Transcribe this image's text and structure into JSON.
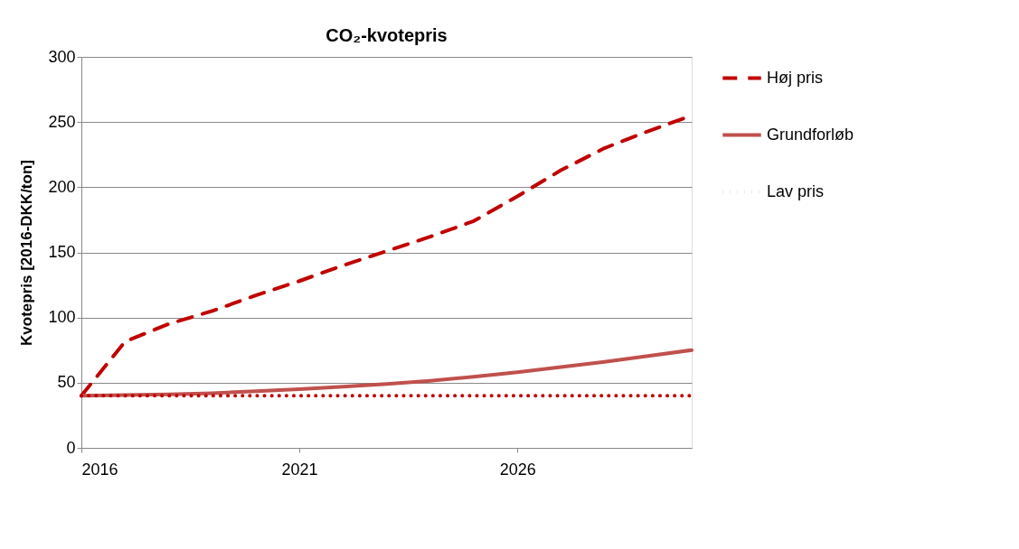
{
  "chart_data": {
    "type": "line",
    "title": "CO₂-kvotepris",
    "ylabel": "Kvotepris [2016-DKK/ton]",
    "x": [
      2016,
      2017,
      2018,
      2019,
      2020,
      2021,
      2022,
      2023,
      2024,
      2025,
      2026,
      2027,
      2028,
      2029,
      2030
    ],
    "xlim": [
      2016,
      2030
    ],
    "xticks": [
      2016,
      2021,
      2026
    ],
    "ylim": [
      0,
      300
    ],
    "yticks": [
      0,
      50,
      100,
      150,
      200,
      250,
      300
    ],
    "grid": "y",
    "legend": "right",
    "marker": "none",
    "series": [
      {
        "name": "Høj pris",
        "color": "#c00000",
        "line_style": "dashed",
        "values": [
          40,
          81.5,
          95,
          105,
          117,
          128,
          140,
          151,
          162,
          174,
          193,
          213,
          230,
          243,
          255
        ]
      },
      {
        "name": "Grundforløb",
        "color": "#c0504d",
        "line_style": "solid",
        "values": [
          40,
          40.5,
          41,
          42,
          43.5,
          45,
          47,
          49,
          51.5,
          54.5,
          58,
          62,
          66,
          70.5,
          75
        ]
      },
      {
        "name": "Lav pris",
        "color": "#c00000",
        "line_style": "dotted",
        "values": [
          40,
          40,
          40,
          40,
          40,
          40,
          40,
          40,
          40,
          40,
          40,
          40,
          40,
          40,
          40
        ]
      }
    ]
  }
}
